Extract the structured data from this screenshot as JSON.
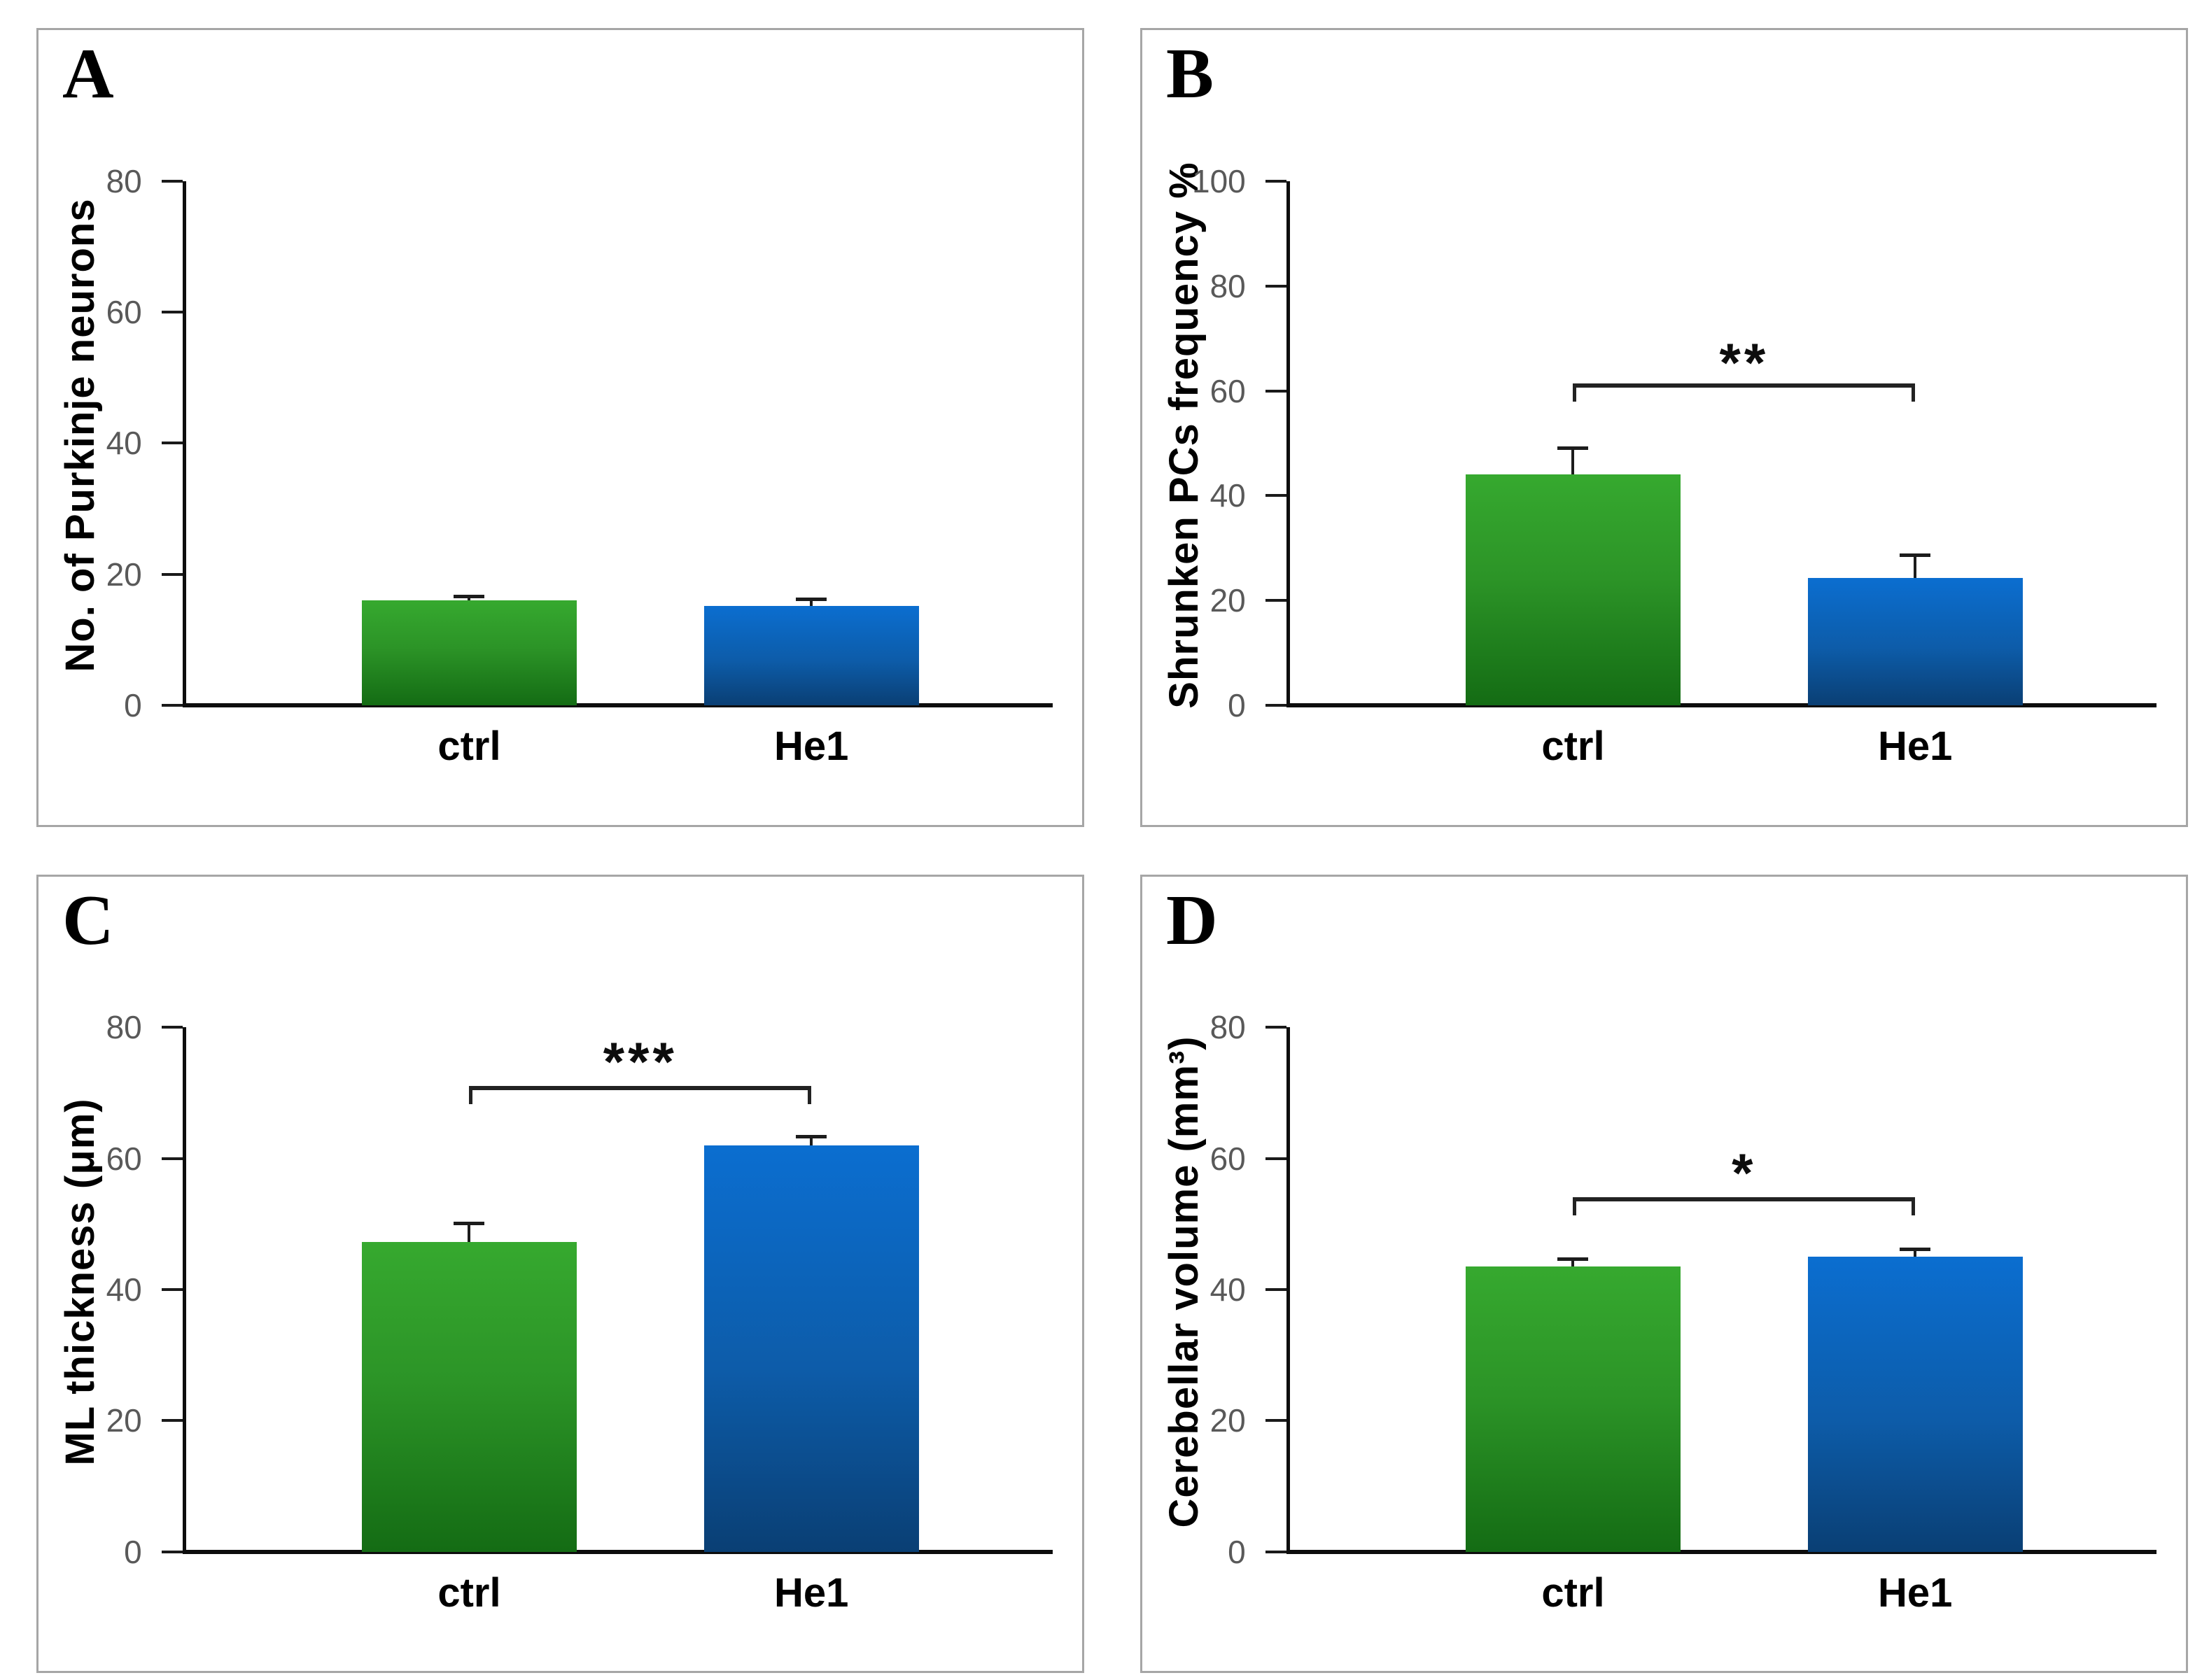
{
  "figure": {
    "panels": [
      "A",
      "B",
      "C",
      "D"
    ],
    "group_labels": [
      "ctrl",
      "He1"
    ]
  },
  "colors": {
    "bar_green_top": "#36a92f",
    "bar_green_bottom": "#146c14",
    "bar_blue_top": "#0b6ed0",
    "bar_blue_bottom": "#0a3f74",
    "axis": "#0d0d0d",
    "tick_text": "#595959",
    "panel_border": "#a6a6a6",
    "significance": "#222222"
  },
  "chart_data": [
    {
      "type": "bar",
      "panel_label": "A",
      "ylabel": "No. of Purkinje neurons",
      "ylim": [
        0,
        80
      ],
      "yticks": [
        0,
        20,
        40,
        60,
        80
      ],
      "categories": [
        "ctrl",
        "He1"
      ],
      "values": [
        16,
        15.2
      ],
      "error_caps": [
        16.6,
        16.1
      ],
      "bar_colors": [
        "green",
        "blue"
      ],
      "significance": null
    },
    {
      "type": "bar",
      "panel_label": "B",
      "ylabel": "Shrunken PCs frequency %",
      "ylim": [
        0,
        100
      ],
      "yticks": [
        0,
        20,
        40,
        60,
        80,
        100
      ],
      "categories": [
        "ctrl",
        "He1"
      ],
      "values": [
        44,
        24.3
      ],
      "error_caps": [
        49,
        28.6
      ],
      "bar_colors": [
        "green",
        "blue"
      ],
      "significance": {
        "stars": "**",
        "bracket_y": 58,
        "stars_y": 62.5
      }
    },
    {
      "type": "bar",
      "panel_label": "C",
      "ylabel": "ML thickness (μm)",
      "ylim": [
        0,
        80
      ],
      "yticks": [
        0,
        20,
        40,
        60,
        80
      ],
      "categories": [
        "ctrl",
        "He1"
      ],
      "values": [
        47.3,
        62
      ],
      "error_caps": [
        50,
        63.3
      ],
      "bar_colors": [
        "green",
        "blue"
      ],
      "significance": {
        "stars": "***",
        "bracket_y": 68.3,
        "stars_y": 72.5
      }
    },
    {
      "type": "bar",
      "panel_label": "D",
      "ylabel": "Cerebellar volume (mm³)",
      "ylim": [
        0,
        80
      ],
      "yticks": [
        0,
        20,
        40,
        60,
        80
      ],
      "categories": [
        "ctrl",
        "He1"
      ],
      "values": [
        43.5,
        45
      ],
      "error_caps": [
        44.6,
        46.1
      ],
      "bar_colors": [
        "green",
        "blue"
      ],
      "significance": {
        "stars": "*",
        "bracket_y": 51.3,
        "stars_y": 55.5
      }
    }
  ]
}
